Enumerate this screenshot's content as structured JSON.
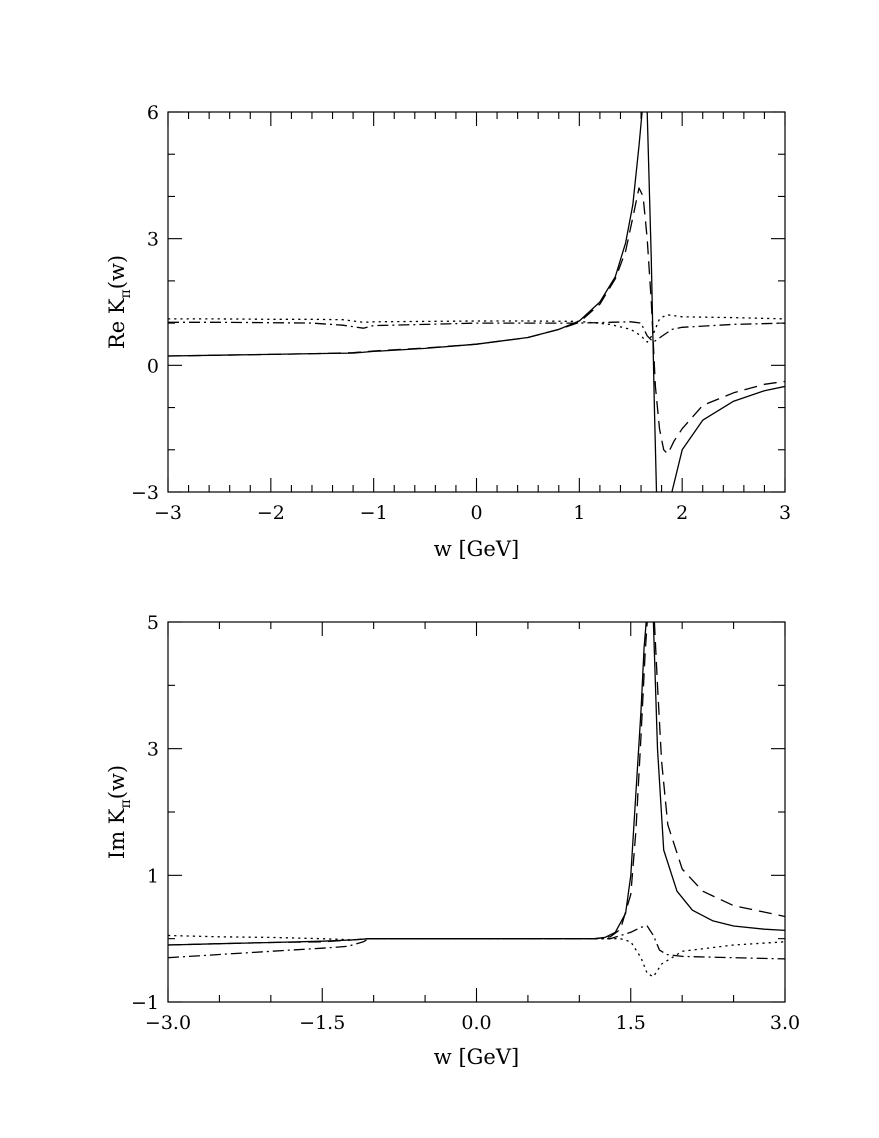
{
  "chart_data": [
    {
      "type": "line",
      "xlabel": "w  [GeV]",
      "ylabel": "Re  K",
      "ylabel_sub": "π",
      "ylabel_tail": "(w)",
      "xlim": [
        -3,
        3
      ],
      "ylim": [
        -3,
        6
      ],
      "xticks": [
        "−3",
        "−2",
        "−1",
        "0",
        "1",
        "2",
        "3"
      ],
      "xtick_values": [
        -3,
        -2,
        -1,
        0,
        1,
        2,
        3
      ],
      "yticks": [
        "−3",
        "0",
        "3",
        "6"
      ],
      "ytick_values": [
        -3,
        0,
        3,
        6
      ],
      "grid": false,
      "series": [
        {
          "style": "solid",
          "segments": [
            [
              [
                -3,
                0.22
              ],
              [
                -2.5,
                0.24
              ],
              [
                -2,
                0.26
              ],
              [
                -1.5,
                0.28
              ],
              [
                -1.2,
                0.29
              ],
              [
                -1,
                0.33
              ],
              [
                -0.5,
                0.4
              ],
              [
                0,
                0.5
              ],
              [
                0.5,
                0.66
              ],
              [
                0.8,
                0.85
              ],
              [
                1,
                1.05
              ],
              [
                1.2,
                1.5
              ],
              [
                1.35,
                2.1
              ],
              [
                1.45,
                2.9
              ],
              [
                1.52,
                3.8
              ],
              [
                1.58,
                5.2
              ],
              [
                1.61,
                6
              ]
            ],
            [
              [
                1.66,
                6
              ],
              [
                1.7,
                2.5
              ],
              [
                1.73,
                -1
              ],
              [
                1.75,
                -3
              ]
            ],
            [
              [
                1.9,
                -3
              ],
              [
                2,
                -2
              ],
              [
                2.2,
                -1.3
              ],
              [
                2.5,
                -0.85
              ],
              [
                2.8,
                -0.6
              ],
              [
                3,
                -0.5
              ]
            ]
          ]
        },
        {
          "style": "dashed",
          "segments": [
            [
              [
                -3,
                0.22
              ],
              [
                -2.5,
                0.24
              ],
              [
                -2,
                0.26
              ],
              [
                -1.5,
                0.28
              ],
              [
                -1.2,
                0.3
              ],
              [
                -1,
                0.34
              ],
              [
                -0.5,
                0.41
              ],
              [
                0,
                0.5
              ],
              [
                0.5,
                0.66
              ],
              [
                0.8,
                0.85
              ],
              [
                1,
                1.02
              ],
              [
                1.2,
                1.45
              ],
              [
                1.35,
                2.05
              ],
              [
                1.45,
                2.7
              ],
              [
                1.52,
                3.5
              ],
              [
                1.58,
                4.2
              ],
              [
                1.62,
                4
              ],
              [
                1.66,
                3
              ],
              [
                1.7,
                1.5
              ],
              [
                1.74,
                -0.5
              ],
              [
                1.78,
                -1.5
              ],
              [
                1.82,
                -2
              ],
              [
                1.86,
                -2.1
              ],
              [
                1.92,
                -1.8
              ],
              [
                2,
                -1.5
              ],
              [
                2.2,
                -0.95
              ],
              [
                2.5,
                -0.65
              ],
              [
                2.8,
                -0.45
              ],
              [
                3,
                -0.38
              ]
            ]
          ]
        },
        {
          "style": "dotted",
          "segments": [
            [
              [
                -3,
                1.1
              ],
              [
                -2.5,
                1.1
              ],
              [
                -2,
                1.09
              ],
              [
                -1.6,
                1.09
              ],
              [
                -1.3,
                1.08
              ],
              [
                -1.1,
                1.02
              ],
              [
                -1,
                1.03
              ],
              [
                -0.5,
                1.04
              ],
              [
                0,
                1.05
              ],
              [
                0.5,
                1.05
              ],
              [
                1,
                1.04
              ],
              [
                1.3,
                0.97
              ],
              [
                1.5,
                0.85
              ],
              [
                1.6,
                0.7
              ],
              [
                1.66,
                0.55
              ],
              [
                1.72,
                0.75
              ],
              [
                1.78,
                1.1
              ],
              [
                1.85,
                1.2
              ],
              [
                2,
                1.15
              ],
              [
                2.5,
                1.13
              ],
              [
                3,
                1.1
              ]
            ]
          ]
        },
        {
          "style": "dash-dot",
          "segments": [
            [
              [
                -3,
                1.02
              ],
              [
                -2.5,
                1.02
              ],
              [
                -2,
                1.01
              ],
              [
                -1.6,
                1.0
              ],
              [
                -1.3,
                0.95
              ],
              [
                -1.1,
                0.88
              ],
              [
                -1,
                0.94
              ],
              [
                -0.5,
                0.97
              ],
              [
                0,
                1.0
              ],
              [
                0.5,
                1.0
              ],
              [
                1,
                1.0
              ],
              [
                1.3,
                1.02
              ],
              [
                1.5,
                1.03
              ],
              [
                1.6,
                1.0
              ],
              [
                1.66,
                0.7
              ],
              [
                1.72,
                0.55
              ],
              [
                1.78,
                0.65
              ],
              [
                1.9,
                0.85
              ],
              [
                2,
                0.9
              ],
              [
                2.5,
                0.97
              ],
              [
                3,
                1.0
              ]
            ]
          ]
        }
      ]
    },
    {
      "type": "line",
      "xlabel": "w  [GeV]",
      "ylabel": "Im  K",
      "ylabel_sub": "π",
      "ylabel_tail": "(w)",
      "xlim": [
        -3,
        3
      ],
      "ylim": [
        -1,
        5
      ],
      "xticks": [
        "−3.0",
        "−1.5",
        "0.0",
        "1.5",
        "3.0"
      ],
      "xtick_values": [
        -3,
        -1.5,
        0,
        1.5,
        3
      ],
      "yticks": [
        "−1",
        "1",
        "3",
        "5"
      ],
      "ytick_values": [
        -1,
        1,
        3,
        5
      ],
      "grid": false,
      "series": [
        {
          "style": "solid",
          "segments": [
            [
              [
                -3,
                -0.1
              ],
              [
                -2.5,
                -0.08
              ],
              [
                -2,
                -0.06
              ],
              [
                -1.5,
                -0.04
              ],
              [
                -1.2,
                -0.02
              ],
              [
                -1.05,
                0
              ],
              [
                0,
                0
              ],
              [
                0.8,
                0
              ],
              [
                1.15,
                0
              ],
              [
                1.25,
                0.02
              ],
              [
                1.35,
                0.1
              ],
              [
                1.45,
                0.4
              ],
              [
                1.5,
                1.0
              ],
              [
                1.55,
                2.3
              ],
              [
                1.6,
                3.6
              ],
              [
                1.63,
                4.6
              ],
              [
                1.65,
                5
              ]
            ],
            [
              [
                1.72,
                5
              ],
              [
                1.76,
                3.0
              ],
              [
                1.82,
                1.4
              ],
              [
                1.95,
                0.75
              ],
              [
                2.1,
                0.45
              ],
              [
                2.3,
                0.28
              ],
              [
                2.5,
                0.2
              ],
              [
                2.8,
                0.15
              ],
              [
                3,
                0.13
              ]
            ]
          ]
        },
        {
          "style": "dashed",
          "segments": [
            [
              [
                -3,
                -0.1
              ],
              [
                -2.5,
                -0.08
              ],
              [
                -2,
                -0.06
              ],
              [
                -1.5,
                -0.05
              ],
              [
                -1.2,
                -0.02
              ],
              [
                -1.05,
                0
              ],
              [
                0,
                0
              ],
              [
                0.8,
                0
              ],
              [
                1.15,
                0
              ],
              [
                1.3,
                0.03
              ],
              [
                1.4,
                0.15
              ],
              [
                1.5,
                0.7
              ],
              [
                1.55,
                1.7
              ],
              [
                1.6,
                3.2
              ],
              [
                1.64,
                4.5
              ],
              [
                1.66,
                5
              ]
            ],
            [
              [
                1.73,
                5
              ],
              [
                1.76,
                4.0
              ],
              [
                1.8,
                2.8
              ],
              [
                1.86,
                1.8
              ],
              [
                2,
                1.1
              ],
              [
                2.2,
                0.75
              ],
              [
                2.5,
                0.52
              ],
              [
                2.8,
                0.42
              ],
              [
                3,
                0.35
              ]
            ]
          ]
        },
        {
          "style": "dotted",
          "segments": [
            [
              [
                -3,
                0.05
              ],
              [
                -2.5,
                0.03
              ],
              [
                -2,
                0.02
              ],
              [
                -1.5,
                0.0
              ],
              [
                -1.2,
                -0.02
              ],
              [
                -1.05,
                0
              ],
              [
                0,
                0
              ],
              [
                1,
                0
              ],
              [
                1.4,
                0
              ],
              [
                1.5,
                -0.05
              ],
              [
                1.6,
                -0.3
              ],
              [
                1.66,
                -0.55
              ],
              [
                1.72,
                -0.6
              ],
              [
                1.8,
                -0.4
              ],
              [
                1.9,
                -0.3
              ],
              [
                2,
                -0.2
              ],
              [
                2.5,
                -0.1
              ],
              [
                3,
                -0.05
              ]
            ]
          ]
        },
        {
          "style": "dash-dot",
          "segments": [
            [
              [
                -3,
                -0.3
              ],
              [
                -2.5,
                -0.25
              ],
              [
                -2,
                -0.2
              ],
              [
                -1.5,
                -0.15
              ],
              [
                -1.25,
                -0.12
              ],
              [
                -1.1,
                -0.05
              ],
              [
                -1.05,
                0
              ],
              [
                0,
                0
              ],
              [
                1,
                0
              ],
              [
                1.3,
                0
              ],
              [
                1.4,
                0.05
              ],
              [
                1.5,
                0.1
              ],
              [
                1.6,
                0.18
              ],
              [
                1.66,
                0.2
              ],
              [
                1.72,
                0.05
              ],
              [
                1.78,
                -0.18
              ],
              [
                1.85,
                -0.25
              ],
              [
                2,
                -0.28
              ],
              [
                2.5,
                -0.3
              ],
              [
                3,
                -0.32
              ]
            ]
          ]
        }
      ]
    }
  ]
}
